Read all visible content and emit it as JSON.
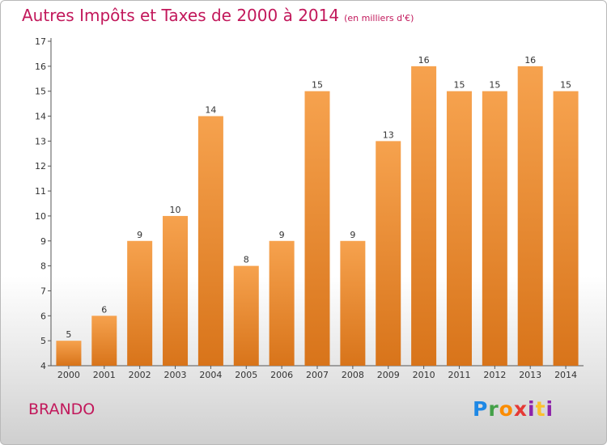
{
  "header": {
    "title": "Autres Impôts et Taxes de 2000 à 2014",
    "unit": "(en milliers d'€)"
  },
  "footer": {
    "commune": "BRANDO",
    "logo_parts": [
      "P",
      "r",
      "o",
      "x",
      "i",
      "t",
      "i"
    ]
  },
  "colors": {
    "bar_top": "#f6a24e",
    "bar_bottom": "#d8741a",
    "title": "#c2185b"
  },
  "chart_data": {
    "type": "bar",
    "title": "Autres Impôts et Taxes de 2000 à 2014",
    "subtitle": "(en milliers d'€)",
    "xlabel": "",
    "ylabel": "",
    "categories": [
      "2000",
      "2001",
      "2002",
      "2003",
      "2004",
      "2005",
      "2006",
      "2007",
      "2008",
      "2009",
      "2010",
      "2011",
      "2012",
      "2013",
      "2014"
    ],
    "values": [
      5,
      6,
      9,
      10,
      14,
      8,
      9,
      15,
      9,
      13,
      16,
      15,
      15,
      16,
      15
    ],
    "ylim": [
      4,
      17
    ],
    "yticks": [
      4,
      5,
      6,
      7,
      8,
      9,
      10,
      11,
      12,
      13,
      14,
      15,
      16,
      17
    ],
    "grid": false,
    "legend": "none"
  }
}
